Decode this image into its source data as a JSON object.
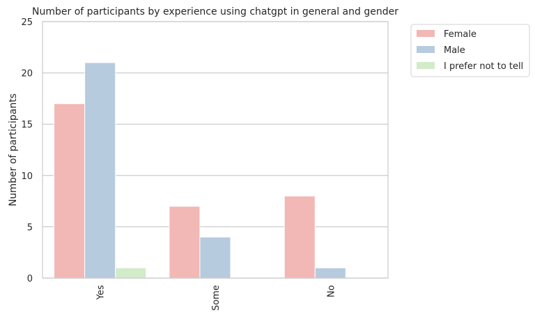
{
  "chart_data": {
    "type": "bar",
    "title": "Number of participants by experience using chatgpt in general and gender",
    "xlabel": "",
    "ylabel": "Number of participants",
    "categories": [
      "Yes",
      "Some",
      "No"
    ],
    "series": [
      {
        "name": "Female",
        "values": [
          17,
          7,
          8
        ],
        "color": "#f2b8b5"
      },
      {
        "name": "Male",
        "values": [
          21,
          4,
          1
        ],
        "color": "#b7cbdf"
      },
      {
        "name": "I prefer not to tell",
        "values": [
          1,
          0,
          0
        ],
        "color": "#d2ebc9"
      }
    ],
    "ylim": [
      0,
      25
    ],
    "yticks": [
      0,
      5,
      10,
      15,
      20,
      25
    ],
    "grid": true,
    "legend": "outside-upper-right"
  }
}
